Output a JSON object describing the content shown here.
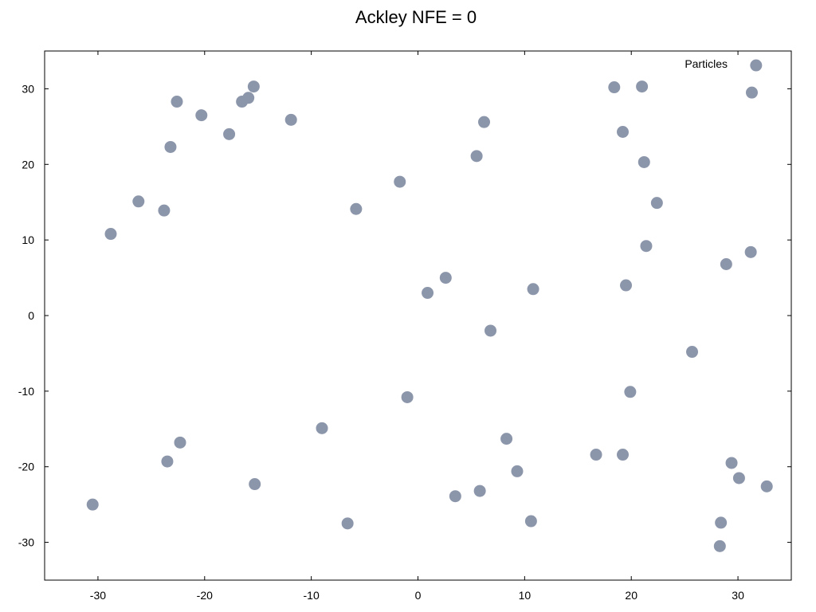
{
  "chart_data": {
    "type": "scatter",
    "title": "Ackley NFE = 0",
    "xlabel": "",
    "ylabel": "",
    "xlim": [
      -35,
      35
    ],
    "ylim": [
      -35,
      35
    ],
    "xticks": [
      -30,
      -20,
      -10,
      0,
      10,
      20,
      30
    ],
    "yticks": [
      -30,
      -20,
      -10,
      0,
      10,
      20,
      30
    ],
    "grid": false,
    "legend_position": "top-right",
    "series": [
      {
        "name": "Particles",
        "color": "#8c96aa",
        "points": [
          [
            -15.4,
            30.3
          ],
          [
            -15.9,
            28.8
          ],
          [
            -16.5,
            28.3
          ],
          [
            -22.6,
            28.3
          ],
          [
            -20.3,
            26.5
          ],
          [
            -17.7,
            24.0
          ],
          [
            -23.2,
            22.3
          ],
          [
            -11.9,
            25.9
          ],
          [
            -26.2,
            15.1
          ],
          [
            -23.8,
            13.9
          ],
          [
            -28.8,
            10.8
          ],
          [
            -1.7,
            17.7
          ],
          [
            -5.8,
            14.1
          ],
          [
            5.5,
            21.1
          ],
          [
            6.2,
            25.6
          ],
          [
            0.9,
            3.0
          ],
          [
            2.6,
            5.0
          ],
          [
            10.8,
            3.5
          ],
          [
            6.8,
            -2.0
          ],
          [
            -1.0,
            -10.8
          ],
          [
            -9.0,
            -14.9
          ],
          [
            -22.3,
            -16.8
          ],
          [
            -23.5,
            -19.3
          ],
          [
            -15.3,
            -22.3
          ],
          [
            -30.5,
            -25.0
          ],
          [
            -6.6,
            -27.5
          ],
          [
            8.3,
            -16.3
          ],
          [
            9.3,
            -20.6
          ],
          [
            5.8,
            -23.2
          ],
          [
            3.5,
            -23.9
          ],
          [
            10.6,
            -27.2
          ],
          [
            16.7,
            -18.4
          ],
          [
            19.2,
            -18.4
          ],
          [
            18.4,
            30.2
          ],
          [
            21.0,
            30.3
          ],
          [
            19.2,
            24.3
          ],
          [
            21.2,
            20.3
          ],
          [
            22.4,
            14.9
          ],
          [
            21.4,
            9.2
          ],
          [
            19.5,
            4.0
          ],
          [
            25.7,
            -4.8
          ],
          [
            19.9,
            -10.1
          ],
          [
            28.9,
            6.8
          ],
          [
            31.2,
            8.4
          ],
          [
            31.3,
            29.5
          ],
          [
            31.7,
            33.1
          ],
          [
            29.4,
            -19.5
          ],
          [
            30.1,
            -21.5
          ],
          [
            32.7,
            -22.6
          ],
          [
            28.4,
            -27.4
          ],
          [
            28.3,
            -30.5
          ]
        ]
      }
    ]
  }
}
